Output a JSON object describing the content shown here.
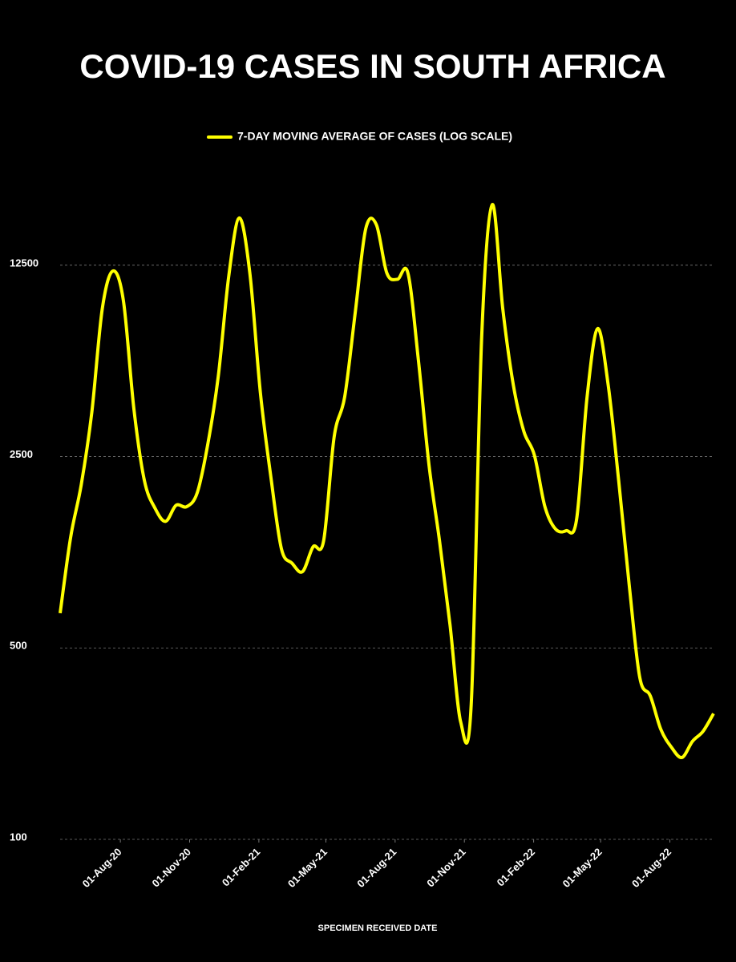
{
  "chart_data": {
    "type": "line",
    "title": "COVID-19 CASES IN SOUTH AFRICA",
    "x_label": "SPECIMEN RECEIVED DATE",
    "log_scale": true,
    "grid": true,
    "legend": "top",
    "xlim": [
      "2020-05-13",
      "2022-09-28"
    ],
    "xticks": [
      {
        "value": "2020-08-01",
        "label": "01-Aug-20"
      },
      {
        "value": "2020-11-01",
        "label": "01-Nov-20"
      },
      {
        "value": "2021-02-01",
        "label": "01-Feb-21"
      },
      {
        "value": "2021-05-01",
        "label": "01-May-21"
      },
      {
        "value": "2021-08-01",
        "label": "01-Aug-21"
      },
      {
        "value": "2021-11-01",
        "label": "01-Nov-21"
      },
      {
        "value": "2022-02-01",
        "label": "01-Feb-22"
      },
      {
        "value": "2022-05-01",
        "label": "01-May-22"
      },
      {
        "value": "2022-08-01",
        "label": "01-Aug-22"
      }
    ],
    "ylim": [
      100,
      25000
    ],
    "yticks": [
      100,
      500,
      2500,
      12500
    ],
    "x": [
      "2020-05-13",
      "2020-05-27",
      "2020-06-10",
      "2020-06-24",
      "2020-07-08",
      "2020-07-22",
      "2020-08-05",
      "2020-08-19",
      "2020-09-02",
      "2020-09-16",
      "2020-09-30",
      "2020-10-14",
      "2020-10-28",
      "2020-11-11",
      "2020-11-25",
      "2020-12-09",
      "2020-12-23",
      "2021-01-06",
      "2021-01-20",
      "2021-02-03",
      "2021-02-17",
      "2021-03-03",
      "2021-03-17",
      "2021-03-31",
      "2021-04-14",
      "2021-04-28",
      "2021-05-12",
      "2021-05-26",
      "2021-06-09",
      "2021-06-23",
      "2021-07-07",
      "2021-07-21",
      "2021-08-04",
      "2021-08-18",
      "2021-09-01",
      "2021-09-15",
      "2021-09-29",
      "2021-10-13",
      "2021-10-27",
      "2021-11-10",
      "2021-11-24",
      "2021-12-08",
      "2021-12-22",
      "2022-01-05",
      "2022-01-19",
      "2022-02-02",
      "2022-02-16",
      "2022-03-02",
      "2022-03-16",
      "2022-03-30",
      "2022-04-13",
      "2022-04-27",
      "2022-05-11",
      "2022-05-25",
      "2022-06-08",
      "2022-06-22",
      "2022-07-06",
      "2022-07-20",
      "2022-08-03",
      "2022-08-17",
      "2022-08-31",
      "2022-09-14",
      "2022-09-28"
    ],
    "series": [
      {
        "name": "7-DAY MOVING AVERAGE OF CASES (LOG SCALE)",
        "color": "#ffff00",
        "values": [
          670,
          1270,
          1970,
          3610,
          8670,
          11900,
          9290,
          3730,
          2040,
          1620,
          1450,
          1660,
          1640,
          1840,
          2760,
          4890,
          11400,
          18600,
          11700,
          4280,
          2100,
          1150,
          1020,
          950,
          1170,
          1230,
          2950,
          4130,
          8390,
          17000,
          17600,
          11700,
          11100,
          11700,
          5600,
          2330,
          1230,
          605,
          269,
          308,
          6850,
          20800,
          8670,
          4570,
          3090,
          2530,
          1640,
          1360,
          1340,
          1470,
          4130,
          7330,
          4570,
          2040,
          847,
          390,
          334,
          252,
          217,
          199,
          228,
          248,
          288
        ]
      }
    ]
  }
}
